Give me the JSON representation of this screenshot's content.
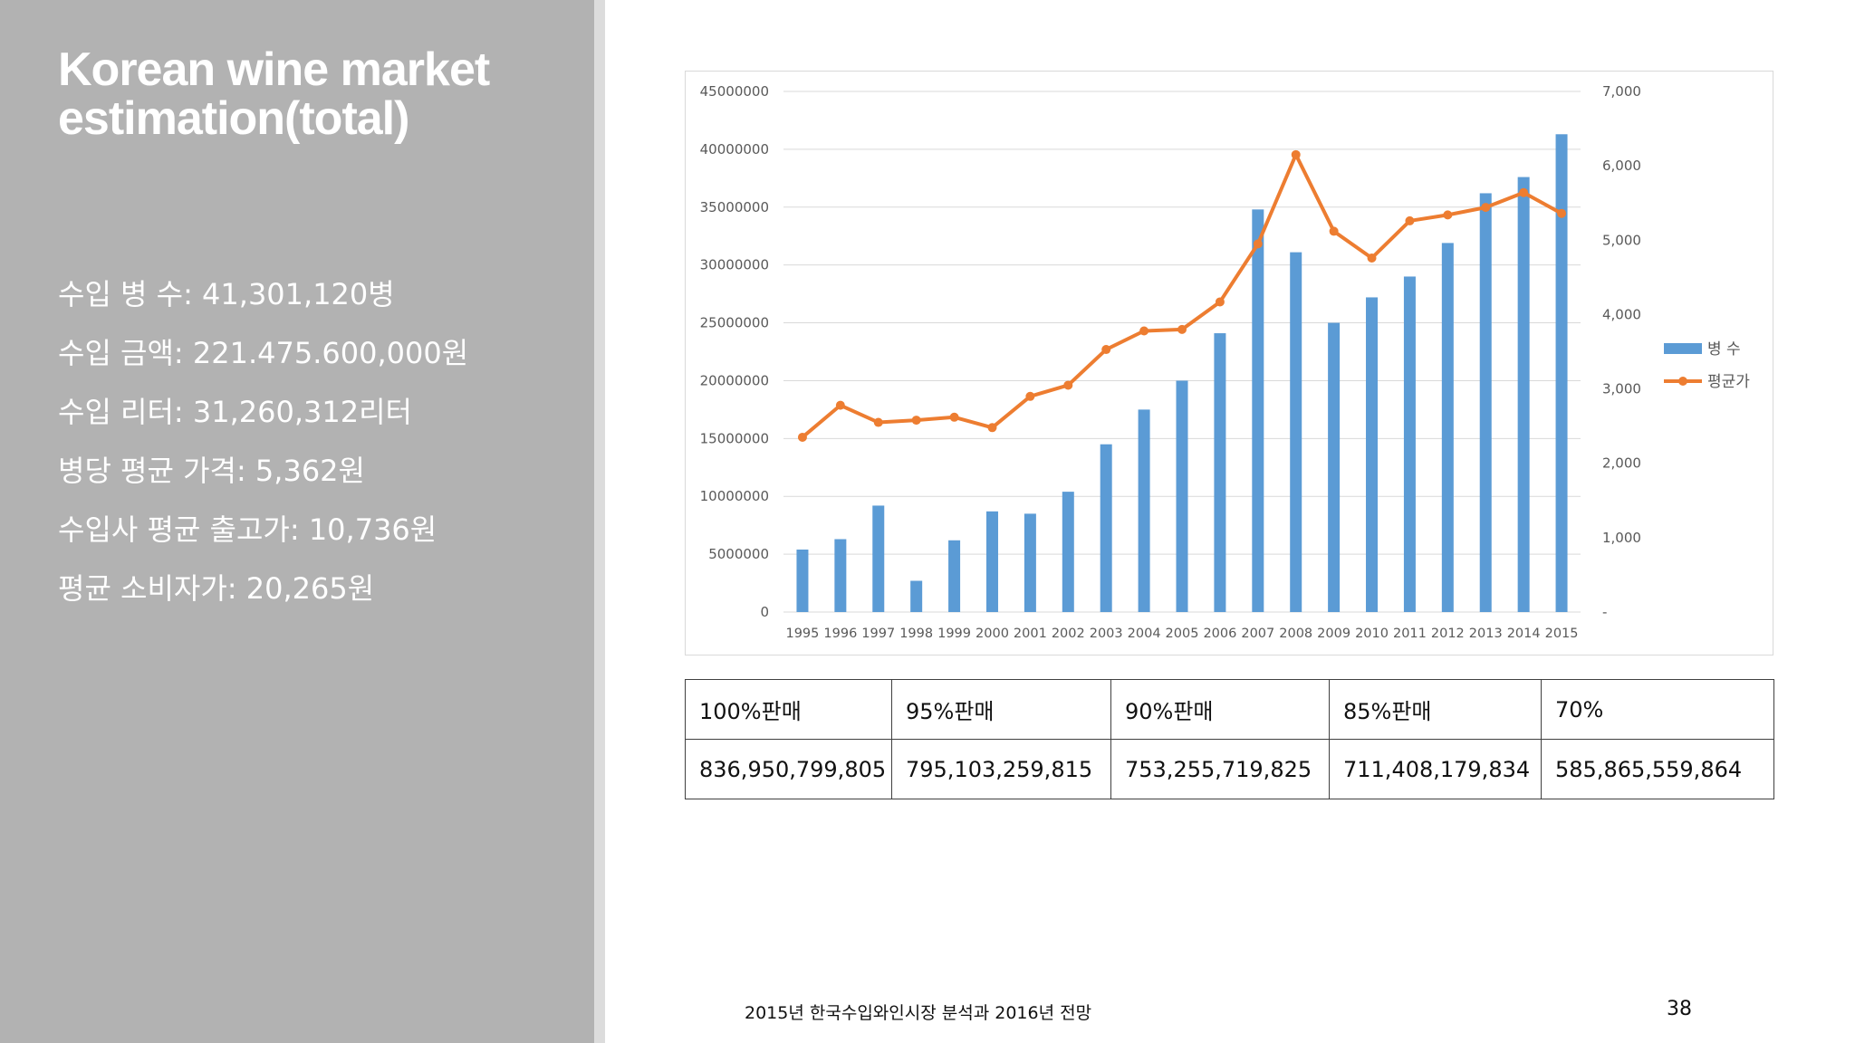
{
  "slide": {
    "title_line1": "Korean wine market",
    "title_line2": "estimation(total)",
    "stats": [
      "수입 병 수: 41,301,120병",
      "수입 금액: 221.475.600,000원",
      "수입 리터: 31,260,312리터",
      "병당 평균 가격: 5,362원",
      "수입사 평균 출고가: 10,736원",
      "평균 소비자가: 20,265원"
    ],
    "footer_source": "2015년 한국수입와인시장 분석과 2016년 전망",
    "page_number": "38",
    "colors": {
      "left_panel": "#b2b2b2",
      "bar": "#5b9bd5",
      "line": "#ed7d31"
    }
  },
  "chart_data": {
    "type": "bar",
    "categories": [
      "1995",
      "1996",
      "1997",
      "1998",
      "1999",
      "2000",
      "2001",
      "2002",
      "2003",
      "2004",
      "2005",
      "2006",
      "2007",
      "2008",
      "2009",
      "2010",
      "2011",
      "2012",
      "2013",
      "2014",
      "2015"
    ],
    "series": [
      {
        "name": "병 수",
        "type": "bar",
        "axis": "left",
        "values": [
          5400000,
          6300000,
          9200000,
          2700000,
          6200000,
          8700000,
          8500000,
          10400000,
          14500000,
          17500000,
          20000000,
          24100000,
          34800000,
          31100000,
          25000000,
          27200000,
          29000000,
          31900000,
          36200000,
          37600000,
          41300000
        ]
      },
      {
        "name": "평균가",
        "type": "line",
        "axis": "right",
        "values": [
          2350,
          2780,
          2550,
          2580,
          2620,
          2480,
          2900,
          3050,
          3530,
          3780,
          3800,
          4170,
          4950,
          6150,
          5120,
          4760,
          5260,
          5340,
          5440,
          5640,
          5360
        ]
      }
    ],
    "y_left": {
      "ylim": [
        0,
        45000000
      ],
      "ticks": [
        "0",
        "5000000",
        "10000000",
        "15000000",
        "20000000",
        "25000000",
        "30000000",
        "35000000",
        "40000000",
        "45000000"
      ]
    },
    "y_right": {
      "ylim": [
        0,
        7000
      ],
      "ticks": [
        "-",
        "1,000",
        "2,000",
        "3,000",
        "4,000",
        "5,000",
        "6,000",
        "7,000"
      ]
    },
    "grid": true,
    "legend": "right"
  },
  "table": {
    "headers": [
      "100%판매",
      "95%판매",
      "90%판매",
      "85%판매",
      "70%"
    ],
    "values": [
      "836,950,799,805",
      "795,103,259,815",
      "753,255,719,825",
      "711,408,179,834",
      "585,865,559,864"
    ]
  }
}
